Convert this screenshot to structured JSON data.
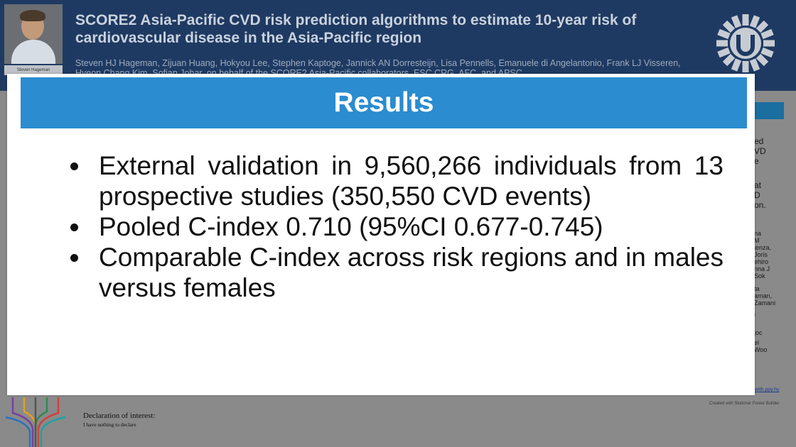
{
  "poster": {
    "title": "SCORE2 Asia-Pacific CVD risk prediction algorithms to estimate 10-year risk of cardiovascular disease in the Asia-Pacific region",
    "authors": "Steven HJ Hageman, Zijuan Huang, Hokyou Lee, Stephen Kaptoge, Jannick AN Dorresteijn, Lisa Pennells, Emanuele di Angelantonio, Frank LJ Visseren, Hyeon Chang Kim, Sofian Johar, on behalf of the SCORE2 Asia-Pacific collaborators, ESC CRG, AFC, and APSC",
    "photo_caption": "Steven Hageman",
    "right_snippets": [
      "ed",
      "VD",
      "e",
      "at",
      "D",
      "on.",
      "na",
      "M",
      "ienza,",
      "Joris",
      "ehiro",
      "nna J",
      "Sok",
      "ta",
      "aman,",
      "Zamani",
      "i",
      "joc",
      "el",
      "Woo"
    ],
    "footer_link": "with.ppy.hy",
    "footer_builder": "Created with Sketcher Poster Builder",
    "declaration_heading": "Declaration of interest:",
    "declaration_text": "I have nothing to declare",
    "colors": {
      "banner": "#1f3a62",
      "accent": "#2b8ccf"
    },
    "logo_icon": "university-sun-logo-icon"
  },
  "slide": {
    "title": "Results",
    "bullets": [
      "External validation in 9,560,266 individuals from 13 prospective studies (350,550 CVD events)",
      "Pooled C-index 0.710 (95%CI 0.677-0.745)",
      "Comparable C-index across risk regions and in males versus females"
    ]
  }
}
